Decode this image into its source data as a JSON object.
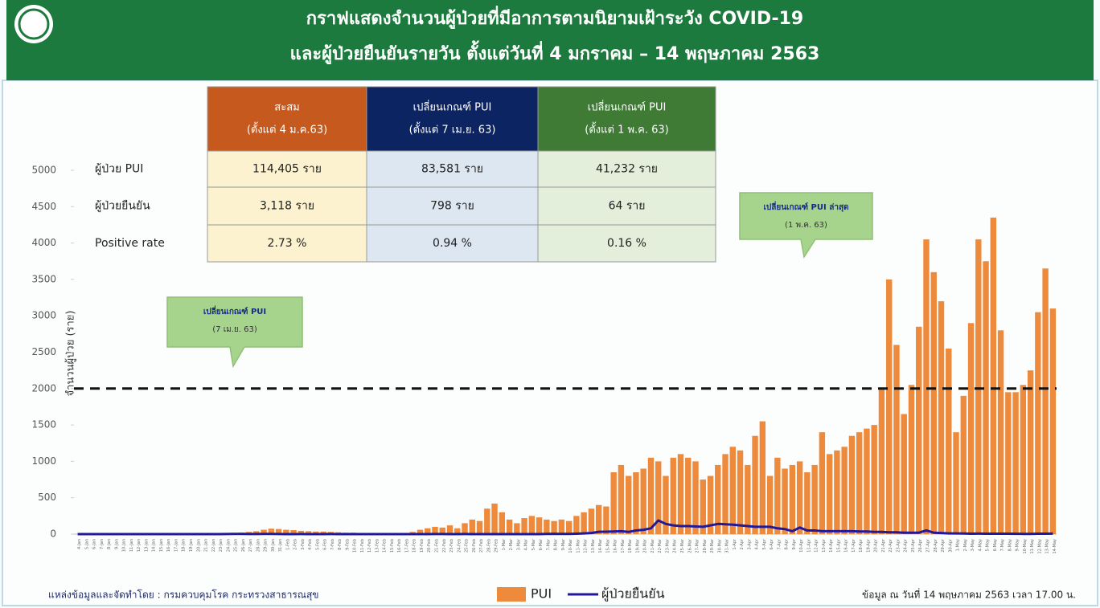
{
  "chart_data": {
    "type": "bar",
    "title": "กราฟแสดงจำนวนผู้ป่วยที่มีอาการตามนิยามเฝ้าระวัง COVID-19",
    "subtitle": "และผู้ป่วยยืนยันรายวัน ตั้งแต่วันที่ 4 มกราคม – 14 พฤษภาคม 2563",
    "y_label": "จำนวนผู้ป่วย (ราย)",
    "ylim": [
      0,
      5000
    ],
    "yticks": [
      0,
      500,
      1000,
      1500,
      2000,
      2500,
      3000,
      3500,
      4000,
      4500,
      5000
    ],
    "reference_line": 2000,
    "categories": [
      "4-Jan",
      "5-Jan",
      "6-Jan",
      "7-Jan",
      "8-Jan",
      "9-Jan",
      "10-Jan",
      "11-Jan",
      "12-Jan",
      "13-Jan",
      "14-Jan",
      "15-Jan",
      "16-Jan",
      "17-Jan",
      "18-Jan",
      "19-Jan",
      "20-Jan",
      "21-Jan",
      "22-Jan",
      "23-Jan",
      "24-Jan",
      "25-Jan",
      "26-Jan",
      "27-Jan",
      "28-Jan",
      "29-Jan",
      "30-Jan",
      "31-Jan",
      "1-Feb",
      "2-Feb",
      "3-Feb",
      "4-Feb",
      "5-Feb",
      "6-Feb",
      "7-Feb",
      "8-Feb",
      "9-Feb",
      "10-Feb",
      "11-Feb",
      "12-Feb",
      "13-Feb",
      "14-Feb",
      "15-Feb",
      "16-Feb",
      "17-Feb",
      "18-Feb",
      "19-Feb",
      "20-Feb",
      "21-Feb",
      "22-Feb",
      "23-Feb",
      "24-Feb",
      "25-Feb",
      "26-Feb",
      "27-Feb",
      "28-Feb",
      "29-Feb",
      "1-Mar",
      "2-Mar",
      "3-Mar",
      "4-Mar",
      "5-Mar",
      "6-Mar",
      "7-Mar",
      "8-Mar",
      "9-Mar",
      "10-Mar",
      "11-Mar",
      "12-Mar",
      "13-Mar",
      "14-Mar",
      "15-Mar",
      "16-Mar",
      "17-Mar",
      "18-Mar",
      "19-Mar",
      "20-Mar",
      "21-Mar",
      "22-Mar",
      "23-Mar",
      "24-Mar",
      "25-Mar",
      "26-Mar",
      "27-Mar",
      "28-Mar",
      "29-Mar",
      "30-Mar",
      "31-Mar",
      "1-Apr",
      "2-Apr",
      "3-Apr",
      "4-Apr",
      "5-Apr",
      "6-Apr",
      "7-Apr",
      "8-Apr",
      "9-Apr",
      "10-Apr",
      "11-Apr",
      "12-Apr",
      "13-Apr",
      "14-Apr",
      "15-Apr",
      "16-Apr",
      "17-Apr",
      "18-Apr",
      "19-Apr",
      "20-Apr",
      "21-Apr",
      "22-Apr",
      "23-Apr",
      "24-Apr",
      "25-Apr",
      "26-Apr",
      "27-Apr",
      "28-Apr",
      "29-Apr",
      "30-Apr",
      "1-May",
      "2-May",
      "3-May",
      "4-May",
      "5-May",
      "6-May",
      "7-May",
      "8-May",
      "9-May",
      "10-May",
      "11-May",
      "12-May",
      "13-May",
      "14-May"
    ],
    "series": [
      {
        "name": "PUI",
        "color": "#ee8a3c",
        "kind": "bar",
        "values": [
          0,
          0,
          0,
          0,
          0,
          0,
          0,
          0,
          0,
          0,
          0,
          0,
          0,
          0,
          0,
          0,
          0,
          0,
          0,
          0,
          5,
          10,
          20,
          30,
          40,
          60,
          75,
          70,
          60,
          55,
          45,
          40,
          35,
          35,
          30,
          25,
          20,
          20,
          15,
          15,
          15,
          12,
          12,
          10,
          15,
          30,
          60,
          80,
          100,
          90,
          120,
          80,
          150,
          200,
          180,
          350,
          420,
          300,
          200,
          150,
          220,
          250,
          230,
          200,
          180,
          200,
          180,
          250,
          300,
          350,
          400,
          380,
          850,
          950,
          800,
          850,
          900,
          1050,
          1000,
          800,
          1050,
          1100,
          1050,
          1000,
          750,
          800,
          950,
          1100,
          1200,
          1150,
          950,
          1350,
          1550,
          800,
          1050,
          900,
          950,
          1000,
          850,
          950,
          1400,
          1100,
          1150,
          1200,
          1350,
          1400,
          1450,
          1500,
          2000,
          3500,
          2600,
          1650,
          2050,
          2850,
          4050,
          3600,
          3200,
          2550,
          1400,
          1900,
          2900,
          4050,
          3750,
          4350,
          2800,
          1950,
          1950,
          2050,
          2250,
          3050,
          3650,
          3100
        ]
      },
      {
        "name": "ผู้ป่วยยืนยัน",
        "color": "#22199a",
        "kind": "line",
        "values": [
          0,
          0,
          0,
          0,
          0,
          0,
          0,
          0,
          0,
          0,
          0,
          0,
          0,
          0,
          0,
          0,
          0,
          0,
          0,
          0,
          1,
          2,
          2,
          1,
          1,
          2,
          3,
          1,
          0,
          0,
          1,
          0,
          0,
          0,
          1,
          0,
          0,
          0,
          0,
          0,
          0,
          0,
          0,
          0,
          0,
          0,
          0,
          0,
          1,
          1,
          0,
          0,
          1,
          0,
          0,
          0,
          0,
          0,
          0,
          0,
          0,
          0,
          0,
          2,
          4,
          3,
          2,
          6,
          10,
          16,
          32,
          33,
          35,
          40,
          30,
          50,
          60,
          80,
          188,
          140,
          120,
          110,
          110,
          105,
          100,
          120,
          140,
          135,
          130,
          120,
          110,
          100,
          100,
          100,
          80,
          70,
          40,
          90,
          50,
          50,
          40,
          40,
          40,
          40,
          40,
          35,
          35,
          30,
          30,
          25,
          25,
          20,
          20,
          20,
          50,
          20,
          15,
          10,
          10,
          8,
          6,
          7,
          6,
          5,
          5,
          6,
          4,
          3,
          3,
          5,
          6,
          7
        ]
      }
    ],
    "table": {
      "columns": [
        {
          "title": "สะสม",
          "subtitle": "(ตั้งแต่ 4 ม.ค.63)"
        },
        {
          "title": "เปลี่ยนเกณฑ์ PUI",
          "subtitle": "(ตั้งแต่ 7 เม.ย. 63)"
        },
        {
          "title": "เปลี่ยนเกณฑ์ PUI",
          "subtitle": "(ตั้งแต่ 1 พ.ค. 63)"
        }
      ],
      "rows": [
        {
          "label": "ผู้ป่วย PUI",
          "cells": [
            "114,405 ราย",
            "83,581 ราย",
            "41,232 ราย"
          ]
        },
        {
          "label": "ผู้ป่วยยืนยัน",
          "cells": [
            "3,118 ราย",
            "798 ราย",
            "64 ราย"
          ]
        },
        {
          "label": "Positive rate",
          "cells": [
            "2.73 %",
            "0.94 %",
            "0.16 %"
          ]
        }
      ]
    },
    "annotations": [
      {
        "lines": [
          "เปลี่ยนเกณฑ์ PUI",
          "(7 เม.ย. 63)"
        ]
      },
      {
        "lines": [
          "เปลี่ยนเกณฑ์ PUI ล่าสุด",
          "(1 พ.ค. 63)"
        ]
      }
    ],
    "source": "แหล่งข้อมูลและจัดทำโดย : กรมควบคุมโรค กระทรวงสาธารณสุข",
    "as_of": "ข้อมูล ณ วันที่ 14 พฤษภาคม 2563 เวลา 17.00 น."
  }
}
